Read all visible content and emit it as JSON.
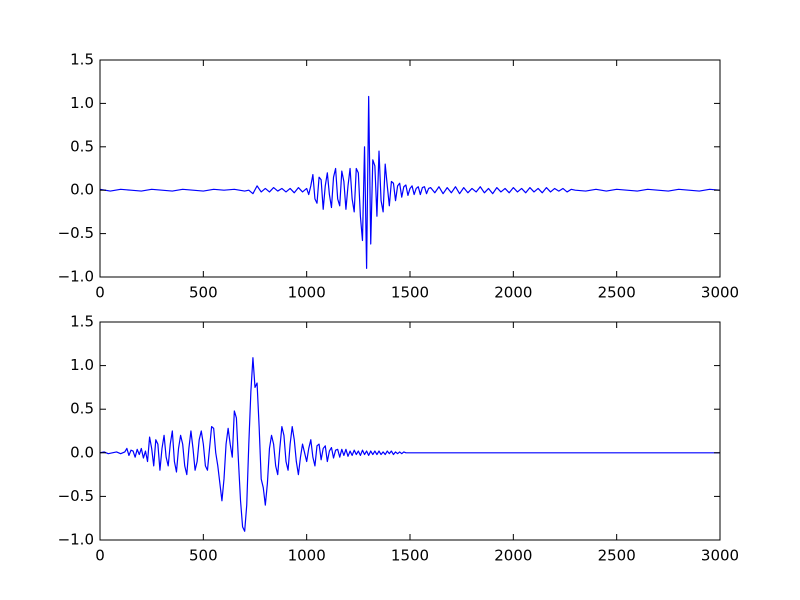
{
  "chart_data": [
    {
      "type": "line",
      "color": "#0000ff",
      "xlim": [
        0,
        3000
      ],
      "ylim": [
        -1,
        1.5
      ],
      "xticks": [
        0,
        500,
        1000,
        1500,
        2000,
        2500,
        3000
      ],
      "yticks": [
        1.5,
        {
          "value": 1.0,
          "label": "1.0"
        },
        0.5,
        {
          "value": 0.0,
          "label": "0.0"
        },
        {
          "value": -0.5,
          "label": "−0.5"
        },
        {
          "value": -1.0,
          "label": "−1.0"
        }
      ],
      "x": [
        0,
        50,
        100,
        150,
        200,
        250,
        300,
        350,
        400,
        450,
        500,
        550,
        600,
        650,
        700,
        720,
        740,
        760,
        780,
        800,
        820,
        840,
        860,
        880,
        900,
        920,
        940,
        960,
        980,
        1000,
        1010,
        1020,
        1030,
        1040,
        1050,
        1060,
        1070,
        1080,
        1090,
        1100,
        1110,
        1120,
        1130,
        1140,
        1150,
        1160,
        1170,
        1180,
        1190,
        1200,
        1210,
        1220,
        1230,
        1240,
        1250,
        1260,
        1270,
        1280,
        1290,
        1300,
        1310,
        1320,
        1330,
        1340,
        1350,
        1360,
        1370,
        1380,
        1390,
        1400,
        1410,
        1420,
        1430,
        1440,
        1450,
        1460,
        1470,
        1480,
        1490,
        1500,
        1510,
        1520,
        1530,
        1540,
        1550,
        1560,
        1570,
        1580,
        1590,
        1600,
        1620,
        1640,
        1660,
        1680,
        1700,
        1720,
        1740,
        1760,
        1780,
        1800,
        1820,
        1840,
        1860,
        1880,
        1900,
        1920,
        1940,
        1960,
        1980,
        2000,
        2020,
        2040,
        2060,
        2080,
        2100,
        2120,
        2140,
        2160,
        2180,
        2200,
        2220,
        2240,
        2260,
        2280,
        2300,
        2350,
        2400,
        2450,
        2500,
        2550,
        2600,
        2650,
        2700,
        2750,
        2800,
        2850,
        2900,
        2950,
        3000
      ],
      "values": [
        0.01,
        -0.01,
        0.01,
        0,
        -0.01,
        0.01,
        0,
        -0.01,
        0.01,
        0,
        -0.01,
        0.01,
        0,
        0.01,
        -0.01,
        0.0,
        -0.04,
        0.05,
        -0.02,
        0.02,
        -0.02,
        0.03,
        -0.01,
        0.02,
        -0.02,
        0.02,
        -0.03,
        0.03,
        -0.02,
        0.02,
        -0.05,
        0.05,
        0.18,
        -0.1,
        -0.15,
        0.15,
        0.12,
        -0.22,
        0.05,
        0.2,
        -0.05,
        -0.2,
        0.15,
        0.25,
        -0.1,
        -0.18,
        0.22,
        0.1,
        -0.22,
        0.05,
        0.25,
        -0.1,
        -0.25,
        0.25,
        0.2,
        -0.3,
        -0.58,
        0.5,
        -0.9,
        1.08,
        -0.62,
        0.35,
        0.28,
        -0.3,
        0.45,
        -0.12,
        -0.25,
        0.3,
        0.05,
        -0.18,
        0.1,
        0.08,
        -0.12,
        0.05,
        0.08,
        -0.08,
        0.04,
        0.06,
        -0.06,
        0.02,
        0.05,
        -0.05,
        0.02,
        0.04,
        -0.05,
        0.03,
        0.04,
        -0.04,
        0.02,
        0.03,
        -0.03,
        0.04,
        -0.04,
        0.03,
        -0.03,
        0.04,
        -0.04,
        0.03,
        -0.03,
        0.02,
        -0.02,
        0.04,
        -0.03,
        0.02,
        -0.04,
        0.03,
        -0.02,
        0.02,
        -0.03,
        0.03,
        -0.02,
        0.02,
        -0.03,
        0.03,
        -0.02,
        0.02,
        -0.03,
        0.03,
        -0.02,
        0.02,
        -0.01,
        0.02,
        -0.02,
        0.01,
        0,
        -0.01,
        0.01,
        -0.01,
        0.01,
        0,
        -0.01,
        0.01,
        0,
        -0.01,
        0.01,
        0,
        -0.01,
        0.01,
        0
      ]
    },
    {
      "type": "line",
      "color": "#0000ff",
      "xlim": [
        0,
        3000
      ],
      "ylim": [
        -1,
        1.5
      ],
      "xticks": [
        0,
        500,
        1000,
        1500,
        2000,
        2500,
        3000
      ],
      "yticks": [
        1.5,
        {
          "value": 1.0,
          "label": "1.0"
        },
        0.5,
        {
          "value": 0.0,
          "label": "0.0"
        },
        {
          "value": -0.5,
          "label": "−0.5"
        },
        {
          "value": -1.0,
          "label": "−1.0"
        }
      ],
      "x": [
        0,
        20,
        40,
        60,
        80,
        100,
        120,
        130,
        140,
        150,
        160,
        170,
        180,
        190,
        200,
        210,
        220,
        230,
        240,
        250,
        260,
        270,
        280,
        290,
        300,
        310,
        320,
        330,
        340,
        350,
        360,
        370,
        380,
        390,
        400,
        410,
        420,
        430,
        440,
        450,
        460,
        470,
        480,
        490,
        500,
        510,
        520,
        530,
        540,
        550,
        560,
        570,
        580,
        590,
        600,
        610,
        620,
        630,
        640,
        650,
        660,
        670,
        680,
        690,
        700,
        710,
        720,
        730,
        740,
        750,
        760,
        770,
        780,
        790,
        800,
        810,
        820,
        830,
        840,
        850,
        860,
        870,
        880,
        890,
        900,
        910,
        920,
        930,
        940,
        950,
        960,
        970,
        980,
        990,
        1000,
        1010,
        1020,
        1030,
        1040,
        1050,
        1060,
        1070,
        1080,
        1090,
        1100,
        1110,
        1120,
        1130,
        1140,
        1150,
        1160,
        1170,
        1180,
        1190,
        1200,
        1210,
        1220,
        1230,
        1240,
        1250,
        1260,
        1270,
        1280,
        1290,
        1300,
        1310,
        1320,
        1330,
        1340,
        1350,
        1360,
        1370,
        1380,
        1390,
        1400,
        1410,
        1420,
        1430,
        1440,
        1450,
        1460,
        1470,
        1480,
        1500,
        3000
      ],
      "values": [
        0,
        0.01,
        -0.01,
        0,
        0.01,
        -0.01,
        0.01,
        0.05,
        -0.03,
        0.03,
        0.02,
        -0.05,
        0.04,
        -0.02,
        0.05,
        -0.06,
        0.02,
        -0.1,
        0.18,
        0.05,
        -0.15,
        0.15,
        0.1,
        -0.2,
        0.05,
        0.2,
        -0.05,
        -0.15,
        0.1,
        0.25,
        -0.1,
        -0.22,
        0.05,
        0.2,
        0.1,
        -0.15,
        -0.25,
        0.05,
        0.25,
        0.05,
        -0.2,
        -0.1,
        0.15,
        0.25,
        0.1,
        -0.15,
        -0.2,
        0.05,
        0.3,
        0.28,
        0.0,
        -0.15,
        -0.35,
        -0.55,
        -0.3,
        0.1,
        0.28,
        0.1,
        -0.05,
        0.48,
        0.4,
        -0.1,
        -0.55,
        -0.85,
        -0.9,
        -0.6,
        0.1,
        0.7,
        1.09,
        0.75,
        0.8,
        0.3,
        -0.3,
        -0.4,
        -0.6,
        -0.35,
        0.05,
        0.2,
        0.1,
        -0.15,
        -0.25,
        0.05,
        0.3,
        0.2,
        -0.1,
        -0.2,
        0.1,
        0.3,
        0.15,
        -0.1,
        -0.25,
        -0.05,
        0.1,
        0.0,
        -0.1,
        0.05,
        0.15,
        -0.05,
        -0.15,
        0.08,
        0.1,
        -0.08,
        0.05,
        0.08,
        -0.1,
        0.02,
        0.06,
        -0.06,
        0.03,
        0.04,
        -0.05,
        0.04,
        -0.03,
        0.04,
        -0.04,
        0.02,
        -0.03,
        0.03,
        -0.02,
        0.02,
        -0.03,
        0.03,
        -0.02,
        0.02,
        -0.03,
        0.02,
        -0.02,
        0.02,
        -0.02,
        0.02,
        -0.02,
        0.01,
        -0.02,
        0.02,
        -0.01,
        0.02,
        -0.02,
        0.01,
        -0.01,
        0.01,
        -0.01,
        0.01,
        0,
        0,
        0
      ]
    }
  ]
}
